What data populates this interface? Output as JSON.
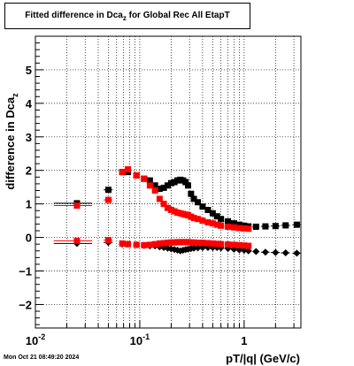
{
  "title": {
    "main": "Fitted difference in Dca",
    "sub": "z",
    "suffix": " for Global Rec All EtapT"
  },
  "timestamp": "Mon Oct 21 08:49:20 2024",
  "chart_data": {
    "type": "scatter",
    "title": "Fitted difference in Dca_z for Global Rec All EtapT",
    "xlabel": "pT/|q| (GeV/c)",
    "ylabel": "difference in Dca_z",
    "xscale": "log",
    "xlim": [
      0.01,
      3.5
    ],
    "ylim": [
      -2.7,
      6.0
    ],
    "grid": true,
    "xticks": [
      {
        "v": 0.01,
        "label": "10",
        "exp": "-2"
      },
      {
        "v": 0.1,
        "label": "10",
        "exp": "-1"
      },
      {
        "v": 1,
        "label": "1",
        "exp": ""
      }
    ],
    "yticks": [
      -2,
      -1,
      0,
      1,
      2,
      3,
      4,
      5
    ],
    "colors": {
      "black": "#000000",
      "red": "#ff0000"
    },
    "series": [
      {
        "color": "black",
        "marker": "square",
        "x": [
          0.025,
          0.05,
          0.068,
          0.077,
          0.093,
          0.11,
          0.125,
          0.14,
          0.155,
          0.17,
          0.185,
          0.2,
          0.215,
          0.23,
          0.245,
          0.26,
          0.275,
          0.29,
          0.31,
          0.33,
          0.36,
          0.4,
          0.45,
          0.5,
          0.55,
          0.6,
          0.7,
          0.8,
          0.9,
          1.0,
          1.1,
          1.3,
          1.6,
          2.0,
          2.5,
          3.2
        ],
        "y": [
          1.02,
          1.42,
          1.95,
          1.95,
          1.85,
          1.75,
          1.7,
          1.55,
          1.45,
          1.48,
          1.55,
          1.62,
          1.65,
          1.7,
          1.72,
          1.7,
          1.65,
          1.55,
          1.3,
          1.15,
          1.05,
          0.92,
          0.82,
          0.72,
          0.63,
          0.55,
          0.48,
          0.42,
          0.38,
          0.35,
          0.33,
          0.32,
          0.33,
          0.34,
          0.36,
          0.38
        ],
        "xerr": [
          0.01,
          0.005,
          0.003,
          0.003,
          0.005,
          0.005,
          0.005,
          0.005,
          0.005,
          0.005,
          0.005,
          0.005,
          0.005,
          0.005,
          0.005,
          0.005,
          0.005,
          0.005,
          0.01,
          0.01,
          0.015,
          0.02,
          0.025,
          0.025,
          0.025,
          0.025,
          0.05,
          0.05,
          0.05,
          0.05,
          0.05,
          0.1,
          0.15,
          0.2,
          0.25,
          0.3
        ]
      },
      {
        "color": "red",
        "marker": "square",
        "x": [
          0.025,
          0.05,
          0.068,
          0.077,
          0.093,
          0.11,
          0.125,
          0.14,
          0.155,
          0.17,
          0.185,
          0.2,
          0.215,
          0.23,
          0.245,
          0.26,
          0.275,
          0.29,
          0.31,
          0.33,
          0.36,
          0.4,
          0.45,
          0.5,
          0.55,
          0.6,
          0.7,
          0.8,
          0.9,
          1.0,
          1.1
        ],
        "y": [
          0.95,
          1.12,
          1.95,
          2.03,
          1.85,
          1.75,
          1.55,
          1.4,
          1.15,
          1.0,
          0.88,
          0.82,
          0.78,
          0.74,
          0.72,
          0.7,
          0.68,
          0.66,
          0.62,
          0.58,
          0.55,
          0.5,
          0.45,
          0.42,
          0.38,
          0.35,
          0.32,
          0.3,
          0.28,
          0.27,
          0.26
        ],
        "xerr": [
          0.01,
          0.005,
          0.003,
          0.003,
          0.005,
          0.005,
          0.005,
          0.005,
          0.005,
          0.005,
          0.005,
          0.005,
          0.005,
          0.005,
          0.005,
          0.005,
          0.005,
          0.005,
          0.01,
          0.01,
          0.015,
          0.02,
          0.025,
          0.025,
          0.025,
          0.025,
          0.05,
          0.05,
          0.05,
          0.05,
          0.05
        ]
      },
      {
        "color": "black",
        "marker": "diamond",
        "x": [
          0.025,
          0.05,
          0.068,
          0.077,
          0.093,
          0.11,
          0.125,
          0.14,
          0.155,
          0.17,
          0.185,
          0.2,
          0.215,
          0.23,
          0.245,
          0.26,
          0.275,
          0.29,
          0.31,
          0.33,
          0.36,
          0.4,
          0.45,
          0.5,
          0.55,
          0.6,
          0.7,
          0.8,
          0.9,
          1.0,
          1.1,
          1.3,
          1.6,
          2.0,
          2.5,
          3.2
        ],
        "y": [
          -0.18,
          -0.15,
          -0.2,
          -0.2,
          -0.22,
          -0.24,
          -0.25,
          -0.25,
          -0.28,
          -0.3,
          -0.32,
          -0.34,
          -0.36,
          -0.38,
          -0.4,
          -0.38,
          -0.36,
          -0.35,
          -0.33,
          -0.32,
          -0.31,
          -0.3,
          -0.3,
          -0.3,
          -0.3,
          -0.31,
          -0.33,
          -0.35,
          -0.37,
          -0.38,
          -0.4,
          -0.42,
          -0.44,
          -0.45,
          -0.46,
          -0.47
        ],
        "xerr": [
          0.01,
          0.005,
          0.003,
          0.003,
          0.005,
          0.005,
          0.005,
          0.005,
          0.005,
          0.005,
          0.005,
          0.005,
          0.005,
          0.005,
          0.005,
          0.005,
          0.005,
          0.005,
          0.01,
          0.01,
          0.015,
          0.02,
          0.025,
          0.025,
          0.025,
          0.025,
          0.05,
          0.05,
          0.05,
          0.05,
          0.05,
          0.1,
          0.15,
          0.2,
          0.25,
          0.3
        ]
      },
      {
        "color": "red",
        "marker": "square",
        "x": [
          0.025,
          0.05,
          0.068,
          0.077,
          0.093,
          0.11,
          0.125,
          0.14,
          0.155,
          0.17,
          0.185,
          0.2,
          0.215,
          0.23,
          0.245,
          0.26,
          0.275,
          0.29,
          0.31,
          0.33,
          0.36,
          0.4,
          0.45,
          0.5,
          0.55,
          0.6,
          0.7,
          0.8,
          0.9,
          1.0,
          1.1
        ],
        "y": [
          -0.1,
          -0.08,
          -0.18,
          -0.2,
          -0.22,
          -0.23,
          -0.22,
          -0.2,
          -0.18,
          -0.17,
          -0.16,
          -0.15,
          -0.15,
          -0.14,
          -0.14,
          -0.14,
          -0.14,
          -0.14,
          -0.15,
          -0.15,
          -0.16,
          -0.16,
          -0.17,
          -0.18,
          -0.19,
          -0.2,
          -0.21,
          -0.22,
          -0.23,
          -0.24,
          -0.25
        ],
        "xerr": [
          0.01,
          0.005,
          0.003,
          0.003,
          0.005,
          0.005,
          0.005,
          0.005,
          0.005,
          0.005,
          0.005,
          0.005,
          0.005,
          0.005,
          0.005,
          0.005,
          0.005,
          0.005,
          0.01,
          0.01,
          0.015,
          0.02,
          0.025,
          0.025,
          0.025,
          0.025,
          0.05,
          0.05,
          0.05,
          0.05,
          0.05
        ]
      }
    ]
  }
}
